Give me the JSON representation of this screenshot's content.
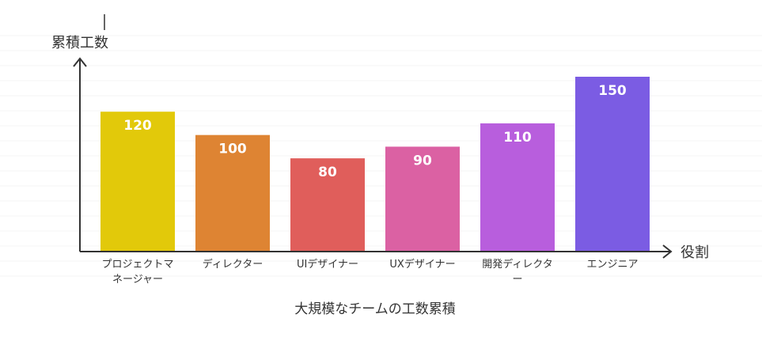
{
  "chart_data": {
    "type": "bar",
    "title": "大規模なチームの工数累積",
    "xlabel": "役割",
    "ylabel": "累積工数",
    "categories": [
      [
        "プロジェクトマ",
        "ネージャー"
      ],
      [
        "ディレクター"
      ],
      [
        "UIデザイナー"
      ],
      [
        "UXデザイナー"
      ],
      [
        "開発ディレクタ",
        "ー"
      ],
      [
        "エンジニア"
      ]
    ],
    "values": [
      120,
      100,
      80,
      90,
      110,
      150
    ],
    "colors": [
      "#E2C90A",
      "#DE8433",
      "#E05E5B",
      "#DB61A3",
      "#B85EDD",
      "#7B5CE3"
    ],
    "ylim": [
      0,
      150
    ],
    "grid": false,
    "legend": "none"
  }
}
